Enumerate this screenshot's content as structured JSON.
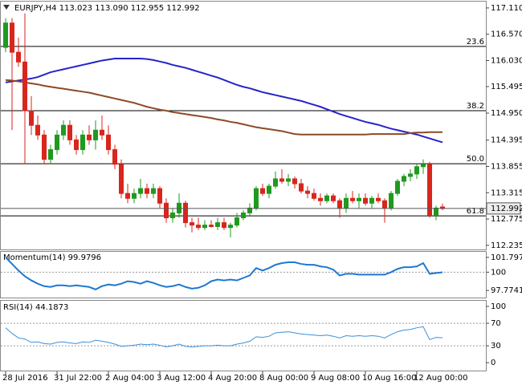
{
  "chart_data": [
    {
      "type": "candlestick",
      "title": "EURJPY,H4  113.023 113.090 112.955 112.992",
      "categories": [
        "28 Jul 2016",
        null,
        null,
        null,
        null,
        null,
        null,
        null,
        "31 Jul 22:00",
        null,
        null,
        null,
        null,
        null,
        null,
        null,
        "2 Aug 04:00",
        null,
        null,
        null,
        null,
        null,
        null,
        null,
        "3 Aug 12:00",
        null,
        null,
        null,
        null,
        null,
        null,
        null,
        "4 Aug 20:00",
        null,
        null,
        null,
        null,
        null,
        null,
        null,
        "8 Aug 00:00",
        null,
        null,
        null,
        null,
        null,
        null,
        null,
        "9 Aug 08:00",
        null,
        null,
        null,
        null,
        null,
        null,
        null,
        "10 Aug 16:00",
        null,
        null,
        null,
        null,
        null,
        null,
        null,
        "12 Aug 00:00",
        null,
        null,
        null,
        null
      ],
      "open": [
        116.3,
        116.8,
        116.2,
        116.0,
        115.0,
        114.7,
        114.5,
        114.0,
        114.2,
        114.5,
        114.7,
        114.4,
        114.2,
        114.5,
        114.4,
        114.6,
        114.5,
        114.2,
        113.9,
        113.3,
        113.2,
        113.3,
        113.4,
        113.3,
        113.4,
        113.1,
        112.8,
        112.9,
        113.1,
        112.7,
        112.65,
        112.6,
        112.65,
        112.62,
        112.7,
        112.6,
        112.65,
        112.8,
        112.9,
        113.0,
        113.4,
        113.3,
        113.45,
        113.6,
        113.55,
        113.6,
        113.5,
        113.35,
        113.3,
        113.2,
        113.15,
        113.25,
        113.15,
        113.0,
        113.2,
        113.15,
        113.2,
        113.1,
        113.2,
        113.15,
        113.0,
        113.3,
        113.55,
        113.65,
        113.7,
        113.85,
        113.9,
        112.85,
        113.023
      ],
      "high": [
        116.9,
        116.9,
        116.5,
        117.0,
        115.3,
        114.9,
        114.6,
        114.3,
        114.6,
        114.8,
        114.8,
        114.5,
        114.6,
        114.7,
        114.8,
        114.9,
        114.7,
        114.3,
        114.0,
        113.5,
        113.4,
        113.6,
        113.5,
        113.5,
        113.45,
        113.2,
        113.0,
        113.3,
        113.15,
        112.8,
        112.8,
        112.75,
        112.75,
        112.8,
        112.8,
        112.7,
        112.9,
        112.95,
        113.1,
        113.45,
        113.5,
        113.5,
        113.75,
        113.8,
        113.7,
        113.65,
        113.6,
        113.45,
        113.4,
        113.3,
        113.3,
        113.3,
        113.2,
        113.3,
        113.35,
        113.3,
        113.3,
        113.25,
        113.3,
        113.2,
        113.35,
        113.6,
        113.7,
        113.8,
        113.9,
        114.0,
        113.95,
        113.05,
        113.09
      ],
      "low": [
        116.2,
        114.6,
        115.9,
        113.9,
        114.5,
        114.4,
        113.9,
        113.9,
        114.1,
        114.4,
        114.3,
        114.1,
        114.1,
        114.3,
        114.2,
        114.4,
        114.1,
        113.8,
        113.2,
        113.1,
        113.1,
        113.2,
        113.2,
        113.2,
        113.0,
        112.7,
        112.7,
        112.8,
        112.6,
        112.5,
        112.55,
        112.55,
        112.6,
        112.55,
        112.55,
        112.4,
        112.6,
        112.75,
        112.85,
        112.95,
        113.25,
        113.2,
        113.4,
        113.5,
        113.45,
        113.4,
        113.3,
        113.2,
        113.15,
        113.05,
        113.1,
        113.1,
        112.8,
        112.9,
        113.1,
        113.0,
        113.05,
        113.0,
        113.1,
        112.7,
        112.95,
        113.25,
        113.45,
        113.55,
        113.6,
        113.7,
        112.8,
        112.75,
        112.955
      ],
      "close": [
        116.8,
        116.2,
        116.0,
        115.0,
        114.7,
        114.5,
        114.0,
        114.2,
        114.5,
        114.7,
        114.4,
        114.2,
        114.5,
        114.4,
        114.6,
        114.5,
        114.2,
        113.9,
        113.3,
        113.2,
        113.3,
        113.4,
        113.3,
        113.4,
        113.1,
        112.8,
        112.9,
        113.1,
        112.7,
        112.65,
        112.6,
        112.65,
        112.62,
        112.7,
        112.6,
        112.65,
        112.8,
        112.9,
        113.0,
        113.4,
        113.3,
        113.45,
        113.6,
        113.55,
        113.6,
        113.5,
        113.35,
        113.3,
        113.2,
        113.15,
        113.25,
        113.15,
        113.0,
        113.2,
        113.15,
        113.2,
        113.1,
        113.2,
        113.15,
        113.0,
        113.3,
        113.55,
        113.65,
        113.7,
        113.85,
        113.9,
        112.85,
        113.0,
        112.992
      ],
      "up_color": "#1f9a1f",
      "down_color": "#d8261d",
      "series": [
        {
          "color": "#2424c8",
          "values": [
            115.58,
            115.6,
            115.62,
            115.64,
            115.66,
            115.69,
            115.74,
            115.79,
            115.82,
            115.85,
            115.88,
            115.91,
            115.94,
            115.97,
            116.0,
            116.03,
            116.05,
            116.07,
            116.07,
            116.07,
            116.07,
            116.07,
            116.06,
            116.04,
            116.01,
            115.98,
            115.94,
            115.91,
            115.88,
            115.84,
            115.8,
            115.76,
            115.72,
            115.68,
            115.63,
            115.58,
            115.53,
            115.49,
            115.46,
            115.42,
            115.38,
            115.35,
            115.32,
            115.29,
            115.26,
            115.23,
            115.2,
            115.16,
            115.12,
            115.08,
            115.03,
            114.98,
            114.93,
            114.89,
            114.85,
            114.81,
            114.77,
            114.74,
            114.71,
            114.67,
            114.63,
            114.6,
            114.57,
            114.54,
            114.51,
            114.47,
            114.43,
            114.39,
            114.35
          ]
        },
        {
          "color": "#8c4a26",
          "values": [
            115.63,
            115.62,
            115.6,
            115.58,
            115.56,
            115.54,
            115.51,
            115.49,
            115.47,
            115.45,
            115.43,
            115.41,
            115.39,
            115.37,
            115.34,
            115.31,
            115.28,
            115.25,
            115.22,
            115.19,
            115.16,
            115.12,
            115.08,
            115.05,
            115.02,
            115.0,
            114.97,
            114.95,
            114.93,
            114.91,
            114.89,
            114.87,
            114.85,
            114.82,
            114.8,
            114.77,
            114.75,
            114.72,
            114.69,
            114.66,
            114.64,
            114.62,
            114.6,
            114.58,
            114.55,
            114.52,
            114.51,
            114.51,
            114.51,
            114.51,
            114.51,
            114.51,
            114.51,
            114.51,
            114.51,
            114.51,
            114.51,
            114.52,
            114.52,
            114.52,
            114.52,
            114.52,
            114.52,
            114.54,
            114.55,
            114.55,
            114.56,
            114.56,
            114.56
          ]
        }
      ],
      "ylim": [
        112.15,
        117.24
      ],
      "yticks": [
        {
          "value": 117.11,
          "label": "117.110"
        },
        {
          "value": 116.57,
          "label": "116.570"
        },
        {
          "value": 116.03,
          "label": "116.030"
        },
        115.495,
        {
          "value": 114.95,
          "label": "114.950"
        },
        114.395,
        113.855,
        113.315,
        112.775,
        112.235
      ],
      "levels": [
        {
          "label": "23.6",
          "value": 116.32
        },
        {
          "label": "38.2",
          "value": 115.0
        },
        {
          "label": "50.0",
          "value": 113.91
        },
        {
          "label": "61.8",
          "value": 112.84
        }
      ],
      "current_price": 112.992
    },
    {
      "type": "line",
      "title": "Momentum(14) 99.9796",
      "color": "#1f78d0",
      "values": [
        101.8,
        101.0,
        100.2,
        99.5,
        99.0,
        98.6,
        98.3,
        98.2,
        98.4,
        98.4,
        98.3,
        98.4,
        98.3,
        98.2,
        97.9,
        98.3,
        98.5,
        98.4,
        98.6,
        98.9,
        98.8,
        98.6,
        98.9,
        98.7,
        98.4,
        98.2,
        98.3,
        98.5,
        98.2,
        98.0,
        98.1,
        98.4,
        98.9,
        99.1,
        99.0,
        99.1,
        99.0,
        99.3,
        99.6,
        100.5,
        100.2,
        100.5,
        100.9,
        101.1,
        101.2,
        101.2,
        101.0,
        100.9,
        100.9,
        100.7,
        100.6,
        100.3,
        99.6,
        99.8,
        99.8,
        99.7,
        99.7,
        99.7,
        99.7,
        99.7,
        100.0,
        100.4,
        100.6,
        100.6,
        100.7,
        101.1,
        99.8,
        99.9,
        99.9796
      ],
      "ylim": [
        96.91,
        102.47
      ],
      "yticks": [
        97.7741,
        100,
        101.7976
      ],
      "levels": [
        100
      ]
    },
    {
      "type": "line",
      "title": "RSI(14) 44.1873",
      "color": "#3b8fd9",
      "values": [
        62,
        52,
        44,
        42,
        36,
        37,
        34,
        33,
        36,
        37,
        35,
        34,
        37,
        36,
        40,
        38,
        36,
        33,
        29,
        30,
        31,
        33,
        32,
        33,
        31,
        28,
        30,
        33,
        29,
        28,
        29,
        30,
        30,
        31,
        30,
        30,
        33,
        35,
        38,
        46,
        45,
        47,
        53,
        54,
        55,
        53,
        51,
        50,
        49,
        48,
        49,
        47,
        44,
        48,
        47,
        48,
        47,
        48,
        47,
        44,
        50,
        55,
        58,
        59,
        62,
        64,
        41,
        45,
        44.1873
      ],
      "ylim": [
        -14,
        110
      ],
      "yticks": [
        0,
        30,
        70,
        100
      ],
      "levels": [
        70,
        30
      ]
    }
  ]
}
